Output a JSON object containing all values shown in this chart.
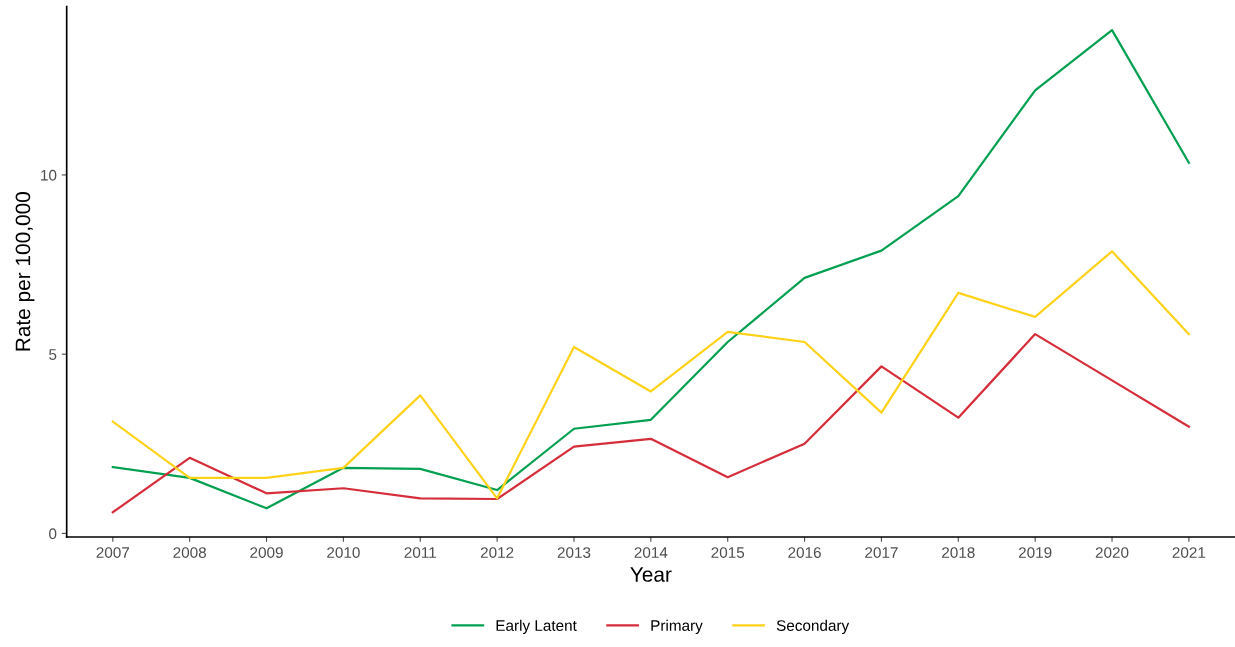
{
  "chart_data": {
    "type": "line",
    "xlabel": "Year",
    "ylabel": "Rate per 100,000",
    "categories": [
      "2007",
      "2008",
      "2009",
      "2010",
      "2011",
      "2012",
      "2013",
      "2014",
      "2015",
      "2016",
      "2017",
      "2018",
      "2019",
      "2020",
      "2021"
    ],
    "series": [
      {
        "name": "Early Latent",
        "color": "#00a050",
        "values": [
          1.85,
          1.55,
          0.7,
          1.83,
          1.8,
          1.21,
          2.92,
          3.17,
          5.34,
          7.13,
          7.89,
          9.41,
          12.36,
          14.04,
          10.34
        ]
      },
      {
        "name": "Primary",
        "color": "#d62d3a",
        "values": [
          0.59,
          2.11,
          1.12,
          1.26,
          0.98,
          0.96,
          2.42,
          2.64,
          1.57,
          2.5,
          4.66,
          3.23,
          5.56,
          4.27,
          2.98
        ]
      },
      {
        "name": "Secondary",
        "color": "#ffd21a",
        "values": [
          3.12,
          1.55,
          1.55,
          1.83,
          3.85,
          0.98,
          5.2,
          3.96,
          5.62,
          5.34,
          3.37,
          6.71,
          6.04,
          7.87,
          5.56
        ]
      }
    ],
    "ylim": [
      -0.1,
      14.7
    ],
    "yticks": [
      0,
      5,
      10
    ],
    "grid": false,
    "legend": "bottom",
    "marker": "none",
    "line_style": "solid"
  }
}
